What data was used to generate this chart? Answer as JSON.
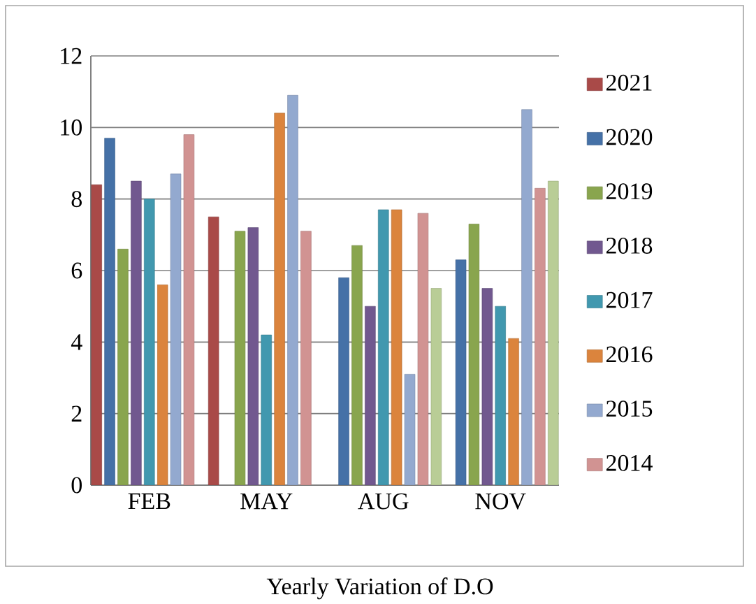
{
  "chart_data": {
    "type": "bar",
    "annotations": [
      "Yearly Variation of D.O"
    ],
    "categories": [
      "FEB",
      "MAY",
      "AUG",
      "NOV"
    ],
    "series": [
      {
        "name": "2021",
        "color": "#a94a48",
        "values": [
          8.4,
          7.5,
          null,
          null
        ]
      },
      {
        "name": "2020",
        "color": "#4571a7",
        "values": [
          9.7,
          null,
          5.8,
          6.3
        ]
      },
      {
        "name": "2019",
        "color": "#89a54e",
        "values": [
          6.6,
          7.1,
          6.7,
          7.3
        ]
      },
      {
        "name": "2018",
        "color": "#71588f",
        "values": [
          8.5,
          7.2,
          5.0,
          5.5
        ]
      },
      {
        "name": "2017",
        "color": "#4198af",
        "values": [
          8.0,
          4.2,
          7.7,
          5.0
        ]
      },
      {
        "name": "2016",
        "color": "#db843d",
        "values": [
          5.6,
          10.4,
          7.7,
          4.1
        ]
      },
      {
        "name": "2015",
        "color": "#93a9cf",
        "values": [
          8.7,
          10.9,
          3.1,
          10.5
        ]
      },
      {
        "name": "2014",
        "color": "#d19392",
        "values": [
          9.8,
          7.1,
          7.6,
          8.3
        ]
      },
      {
        "color": "#b9cd96",
        "values": [
          null,
          null,
          5.5,
          8.5
        ]
      }
    ],
    "ylim": [
      0,
      12
    ],
    "yticks": [
      0,
      2,
      4,
      6,
      8,
      10,
      12
    ],
    "grid": "y",
    "legend": "right"
  }
}
